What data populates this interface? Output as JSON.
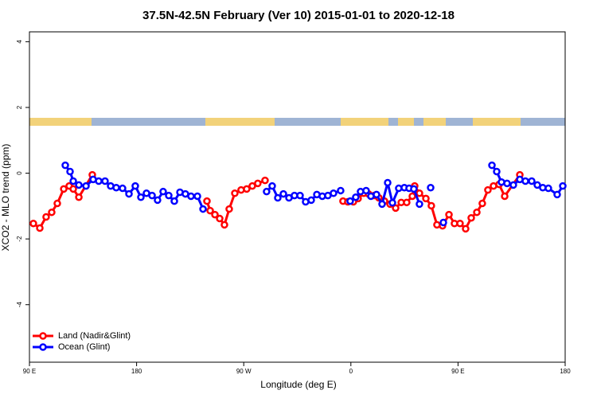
{
  "chart_data": {
    "type": "line",
    "title": "37.5N-42.5N February (Ver 10)   2015-01-01 to 2020-12-18",
    "x_label": "Longitude (deg E)",
    "y_label": "XCO2 - MLO trend (ppm)",
    "xlim": [
      90,
      540
    ],
    "xticks": [
      {
        "value": 90,
        "label": "90 E"
      },
      {
        "value": 180,
        "label": "180"
      },
      {
        "value": 270,
        "label": "90 W"
      },
      {
        "value": 360,
        "label": "0"
      },
      {
        "value": 450,
        "label": "90 E"
      },
      {
        "value": 540,
        "label": "180"
      }
    ],
    "ylim": [
      -5.75,
      4.3
    ],
    "yticks": [
      -4,
      -2,
      0,
      2,
      4
    ],
    "legend": "bottom left",
    "series": [
      {
        "name": "Land (Nadir&Glint)",
        "color": "#ff0000",
        "x": [
          93.3,
          98.7,
          104.0,
          108.7,
          113.4,
          118.8,
          123.4,
          126.8,
          131.5,
          142.8,
          null,
          239.1,
          241.8,
          245.8,
          249.8,
          253.8,
          257.8,
          262.5,
          267.8,
          272.5,
          277.2,
          281.8,
          287.9,
          null,
          353.4,
          357.4,
          362.1,
          366.1,
          370.8,
          374.8,
          379.5,
          383.5,
          388.2,
          392.9,
          397.6,
          402.3,
          406.9,
          411.6,
          413.6,
          417.6,
          423.0,
          427.6,
          432.3,
          437.0,
          442.4,
          447.0,
          451.7,
          456.4,
          461.1,
          465.8,
          470.4,
          475.1,
          479.8,
          484.5,
          489.2,
          501.9
        ],
        "values": [
          -1.53,
          -1.67,
          -1.33,
          -1.19,
          -0.92,
          -0.48,
          -0.39,
          -0.48,
          -0.73,
          -0.05,
          null,
          -0.85,
          -1.14,
          -1.26,
          -1.38,
          -1.57,
          -1.09,
          -0.61,
          -0.51,
          -0.48,
          -0.39,
          -0.31,
          -0.22,
          null,
          -0.85,
          -0.87,
          -0.87,
          -0.77,
          -0.61,
          -0.63,
          -0.68,
          -0.75,
          -0.85,
          -0.94,
          -1.06,
          -0.89,
          -0.89,
          -0.7,
          -0.39,
          -0.61,
          -0.77,
          -0.99,
          -1.57,
          -1.6,
          -1.26,
          -1.53,
          -1.53,
          -1.69,
          -1.36,
          -1.19,
          -0.92,
          -0.51,
          -0.39,
          -0.34,
          -0.7,
          -0.05
        ]
      },
      {
        "name": "Ocean (Glint)",
        "color": "#0000ff",
        "x": [
          120.1,
          124.1,
          126.8,
          131.5,
          137.5,
          143.5,
          148.2,
          153.5,
          158.2,
          162.9,
          168.2,
          173.6,
          178.9,
          183.6,
          188.3,
          193.0,
          197.6,
          202.3,
          207.0,
          211.7,
          216.4,
          221.0,
          225.7,
          231.1,
          235.8,
          null,
          289.2,
          293.9,
          298.6,
          303.3,
          308.0,
          312.6,
          317.3,
          322.0,
          326.7,
          331.4,
          336.0,
          340.7,
          345.4,
          351.4,
          null,
          359.4,
          364.1,
          368.1,
          372.8,
          376.8,
          381.5,
          386.2,
          390.9,
          394.9,
          400.2,
          404.9,
          408.9,
          412.9,
          417.6,
          null,
          427.0,
          null,
          437.7,
          null,
          478.5,
          482.5,
          486.5,
          491.2,
          496.5,
          501.9,
          506.6,
          511.9,
          516.6,
          521.2,
          525.9,
          533.3,
          538.0
        ],
        "values": [
          0.24,
          0.05,
          -0.24,
          -0.36,
          -0.39,
          -0.19,
          -0.24,
          -0.24,
          -0.39,
          -0.44,
          -0.46,
          -0.63,
          -0.39,
          -0.73,
          -0.61,
          -0.68,
          -0.82,
          -0.56,
          -0.68,
          -0.85,
          -0.58,
          -0.63,
          -0.7,
          -0.7,
          -1.09,
          null,
          -0.56,
          -0.39,
          -0.75,
          -0.63,
          -0.75,
          -0.68,
          -0.68,
          -0.87,
          -0.82,
          -0.65,
          -0.7,
          -0.68,
          -0.61,
          -0.53,
          null,
          -0.85,
          -0.73,
          -0.56,
          -0.53,
          -0.7,
          -0.65,
          -0.94,
          -0.29,
          -0.9,
          -0.46,
          -0.44,
          -0.46,
          -0.48,
          -0.94,
          null,
          -0.44,
          null,
          -1.5,
          null,
          0.24,
          0.05,
          -0.27,
          -0.31,
          -0.36,
          -0.19,
          -0.24,
          -0.24,
          -0.36,
          -0.44,
          -0.46,
          -0.65,
          -0.39
        ]
      }
    ]
  }
}
